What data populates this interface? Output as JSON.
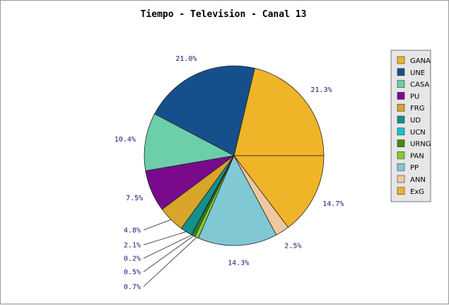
{
  "chart_data": {
    "type": "pie",
    "title": "Tiempo - Television - Canal 13",
    "legend_position": "right",
    "slices": [
      {
        "name": "GANA",
        "value": 21.3,
        "label": "21.3%",
        "color": "#efb428"
      },
      {
        "name": "UNE",
        "value": 21.0,
        "label": "21.0%",
        "color": "#15508c"
      },
      {
        "name": "CASA",
        "value": 10.4,
        "label": "10.4%",
        "color": "#6ccfaa"
      },
      {
        "name": "PU",
        "value": 7.5,
        "label": "7.5%",
        "color": "#7a0a8c"
      },
      {
        "name": "FRG",
        "value": 4.8,
        "label": "4.8%",
        "color": "#d9a42a"
      },
      {
        "name": "UD",
        "value": 2.1,
        "label": "2.1%",
        "color": "#14908a"
      },
      {
        "name": "UCN",
        "value": 0.2,
        "label": "0.2%",
        "color": "#14c4d0"
      },
      {
        "name": "URNG",
        "value": 0.5,
        "label": "0.5%",
        "color": "#3e8a12"
      },
      {
        "name": "PAN",
        "value": 0.7,
        "label": "0.7%",
        "color": "#7ed12c"
      },
      {
        "name": "PP",
        "value": 14.3,
        "label": "14.3%",
        "color": "#80c8d4"
      },
      {
        "name": "ANN",
        "value": 2.5,
        "label": "2.5%",
        "color": "#efc8a0"
      },
      {
        "name": "ExG",
        "value": 14.7,
        "label": "14.7%",
        "color": "#efb428"
      }
    ]
  }
}
